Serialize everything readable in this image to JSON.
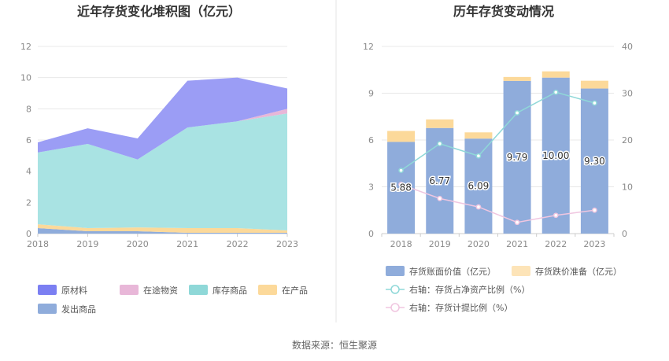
{
  "source": "数据来源：恒生聚源",
  "chart_data": [
    {
      "type": "area",
      "stacked": true,
      "title": "近年存货变化堆积图（亿元）",
      "x": [
        "2018",
        "2019",
        "2020",
        "2021",
        "2022",
        "2023"
      ],
      "ylim": [
        0,
        12
      ],
      "yticks": [
        "0",
        "2",
        "4",
        "6",
        "8",
        "10",
        "12"
      ],
      "grid": true,
      "legend_position": "bottom",
      "series": [
        {
          "name": "发出商品",
          "color": "#8facdb",
          "values": [
            0.35,
            0.15,
            0.15,
            0.05,
            0.05,
            0.05
          ]
        },
        {
          "name": "在产品",
          "color": "#fcd99a",
          "values": [
            0.25,
            0.2,
            0.25,
            0.3,
            0.3,
            0.15
          ]
        },
        {
          "name": "库存商品",
          "color": "#a9e3e3",
          "values": [
            4.6,
            5.4,
            4.35,
            6.45,
            6.85,
            7.5
          ]
        },
        {
          "name": "在途物资",
          "color": "#e8b7d8",
          "values": [
            0.0,
            0.0,
            0.0,
            0.0,
            0.0,
            0.3
          ]
        },
        {
          "name": "原材料",
          "color": "#9b9df5",
          "values": [
            0.65,
            1.0,
            1.35,
            3.0,
            2.8,
            1.3
          ]
        }
      ],
      "legend_order": [
        "原材料",
        "在途物资",
        "库存商品",
        "在产品",
        "发出商品"
      ],
      "legend_colors": {
        "原材料": "#7b7ff2",
        "在途物资": "#e8b7d8",
        "库存商品": "#8fd8d8",
        "在产品": "#fcd99a",
        "发出商品": "#8facdb"
      }
    },
    {
      "type": "bar",
      "stacked": true,
      "title": "历年存货变动情况",
      "categories": [
        "2018",
        "2019",
        "2020",
        "2021",
        "2022",
        "2023"
      ],
      "ylim": [
        0,
        12
      ],
      "yticks": [
        "0",
        "3",
        "6",
        "9",
        "12"
      ],
      "y2lim": [
        0,
        40
      ],
      "y2ticks": [
        "0",
        "10",
        "20",
        "30",
        "40"
      ],
      "grid": true,
      "legend_position": "bottom",
      "series": [
        {
          "name": "存货账面价值（亿元）",
          "color": "#8facdb",
          "values": [
            5.88,
            6.77,
            6.09,
            9.79,
            10.0,
            9.3
          ],
          "labels": [
            "5.88",
            "6.77",
            "6.09",
            "9.79",
            "10.00",
            "9.30"
          ]
        },
        {
          "name": "存货跌价准备（亿元）",
          "color": "#fcd99a",
          "values": [
            0.7,
            0.55,
            0.4,
            0.25,
            0.4,
            0.5
          ]
        }
      ],
      "lines": [
        {
          "name": "右轴：存货占净资产比例（%）",
          "color": "#8fd8d8",
          "axis": "right",
          "values": [
            13.5,
            19.2,
            16.6,
            25.8,
            30.2,
            27.9
          ]
        },
        {
          "name": "右轴：存货计提比例（%）",
          "color": "#f0c6e0",
          "axis": "right",
          "values": [
            10.5,
            7.5,
            5.7,
            2.4,
            3.9,
            5.0
          ]
        }
      ]
    }
  ]
}
